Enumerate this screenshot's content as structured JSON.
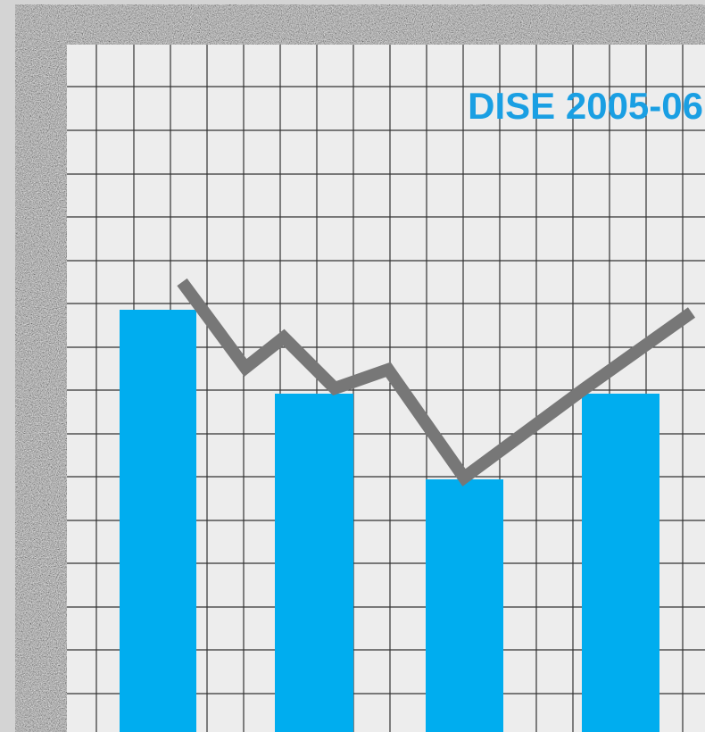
{
  "title": "DISE 2005-06"
}
